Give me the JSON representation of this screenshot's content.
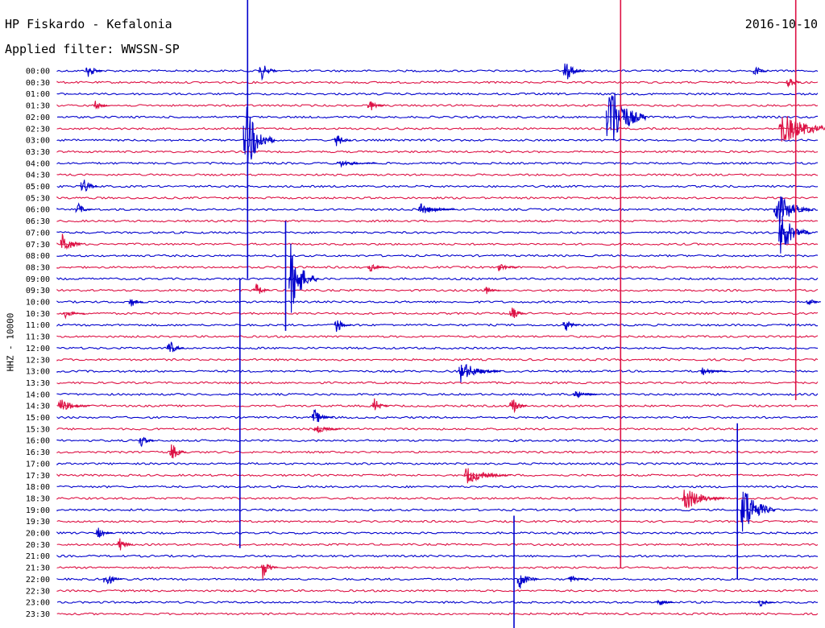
{
  "header": {
    "station": "HP Fiskardo - Kefalonia",
    "filter": "Applied filter: WWSSN-SP",
    "date": "2016-10-10"
  },
  "chart_data": {
    "type": "line",
    "title": "HP Fiskardo - Kefalonia",
    "subtitle": "Applied filter: WWSSN-SP",
    "date": "2016-10-10",
    "ylabel": "HHZ - 10000",
    "grid": false,
    "trace_colors": [
      "#0000cc",
      "#dd1144"
    ],
    "row_times": [
      "00:00",
      "00:30",
      "01:00",
      "01:30",
      "02:00",
      "02:30",
      "03:00",
      "03:30",
      "04:00",
      "04:30",
      "05:00",
      "05:30",
      "06:00",
      "06:30",
      "07:00",
      "07:30",
      "08:00",
      "08:30",
      "09:00",
      "09:30",
      "10:00",
      "10:30",
      "11:00",
      "11:30",
      "12:00",
      "12:30",
      "13:00",
      "13:30",
      "14:00",
      "14:30",
      "15:00",
      "15:30",
      "16:00",
      "16:30",
      "17:00",
      "17:30",
      "18:00",
      "18:30",
      "19:00",
      "19:30",
      "20:00",
      "20:30",
      "21:00",
      "21:30",
      "22:00",
      "22:30",
      "23:00",
      "23:30"
    ],
    "trace_minutes_per_row": 30,
    "events": [
      {
        "row": 0,
        "minute": 1.2,
        "amp": 10,
        "dur": 0.6
      },
      {
        "row": 0,
        "minute": 8.0,
        "amp": 14,
        "dur": 0.7
      },
      {
        "row": 0,
        "minute": 27.5,
        "amp": 8,
        "dur": 0.5
      },
      {
        "row": 0,
        "minute": 20.0,
        "amp": 16,
        "dur": 0.8
      },
      {
        "row": 1,
        "minute": 28.8,
        "amp": 14,
        "dur": 0.5
      },
      {
        "row": 3,
        "minute": 1.5,
        "amp": 6,
        "dur": 0.6
      },
      {
        "row": 3,
        "minute": 12.3,
        "amp": 10,
        "dur": 0.6
      },
      {
        "row": 4,
        "minute": 21.7,
        "amp": 60,
        "dur": 1.5
      },
      {
        "row": 5,
        "minute": 28.5,
        "amp": 22,
        "dur": 2.5
      },
      {
        "row": 6,
        "minute": 7.4,
        "amp": 50,
        "dur": 1.2
      },
      {
        "row": 6,
        "minute": 11.0,
        "amp": 10,
        "dur": 0.6
      },
      {
        "row": 8,
        "minute": 11.1,
        "amp": 5,
        "dur": 1.5
      },
      {
        "row": 10,
        "minute": 1.0,
        "amp": 14,
        "dur": 0.6
      },
      {
        "row": 12,
        "minute": 0.8,
        "amp": 10,
        "dur": 0.6
      },
      {
        "row": 12,
        "minute": 14.3,
        "amp": 8,
        "dur": 1.4
      },
      {
        "row": 12,
        "minute": 28.3,
        "amp": 26,
        "dur": 1.5
      },
      {
        "row": 14,
        "minute": 28.5,
        "amp": 30,
        "dur": 1.2
      },
      {
        "row": 15,
        "minute": 0.2,
        "amp": 16,
        "dur": 0.8
      },
      {
        "row": 17,
        "minute": 12.3,
        "amp": 6,
        "dur": 0.8
      },
      {
        "row": 17,
        "minute": 17.4,
        "amp": 6,
        "dur": 0.8
      },
      {
        "row": 18,
        "minute": 9.2,
        "amp": 46,
        "dur": 1.1
      },
      {
        "row": 19,
        "minute": 7.8,
        "amp": 12,
        "dur": 0.6
      },
      {
        "row": 19,
        "minute": 16.9,
        "amp": 6,
        "dur": 0.6
      },
      {
        "row": 20,
        "minute": 2.9,
        "amp": 8,
        "dur": 0.5
      },
      {
        "row": 20,
        "minute": 29.6,
        "amp": 6,
        "dur": 0.5
      },
      {
        "row": 21,
        "minute": 0.3,
        "amp": 6,
        "dur": 0.8
      },
      {
        "row": 21,
        "minute": 17.9,
        "amp": 10,
        "dur": 0.6
      },
      {
        "row": 22,
        "minute": 11.0,
        "amp": 12,
        "dur": 0.6
      },
      {
        "row": 22,
        "minute": 20.0,
        "amp": 10,
        "dur": 0.6
      },
      {
        "row": 24,
        "minute": 4.4,
        "amp": 12,
        "dur": 0.6
      },
      {
        "row": 26,
        "minute": 15.9,
        "amp": 14,
        "dur": 1.6
      },
      {
        "row": 26,
        "minute": 25.4,
        "amp": 6,
        "dur": 1.0
      },
      {
        "row": 28,
        "minute": 20.4,
        "amp": 6,
        "dur": 1.0
      },
      {
        "row": 29,
        "minute": 0.1,
        "amp": 10,
        "dur": 1.2
      },
      {
        "row": 29,
        "minute": 12.5,
        "amp": 10,
        "dur": 0.6
      },
      {
        "row": 29,
        "minute": 17.9,
        "amp": 14,
        "dur": 0.6
      },
      {
        "row": 30,
        "minute": 10.1,
        "amp": 12,
        "dur": 0.8
      },
      {
        "row": 31,
        "minute": 10.2,
        "amp": 8,
        "dur": 1.0
      },
      {
        "row": 32,
        "minute": 3.3,
        "amp": 10,
        "dur": 0.5
      },
      {
        "row": 33,
        "minute": 4.5,
        "amp": 14,
        "dur": 0.6
      },
      {
        "row": 35,
        "minute": 16.1,
        "amp": 12,
        "dur": 1.8
      },
      {
        "row": 37,
        "minute": 24.7,
        "amp": 18,
        "dur": 1.6
      },
      {
        "row": 38,
        "minute": 27.0,
        "amp": 40,
        "dur": 1.3
      },
      {
        "row": 40,
        "minute": 1.6,
        "amp": 8,
        "dur": 0.6
      },
      {
        "row": 41,
        "minute": 2.4,
        "amp": 12,
        "dur": 0.6
      },
      {
        "row": 43,
        "minute": 8.1,
        "amp": 16,
        "dur": 0.6
      },
      {
        "row": 44,
        "minute": 1.9,
        "amp": 12,
        "dur": 0.7
      },
      {
        "row": 44,
        "minute": 18.2,
        "amp": 14,
        "dur": 0.8
      },
      {
        "row": 44,
        "minute": 20.2,
        "amp": 6,
        "dur": 0.7
      },
      {
        "row": 46,
        "minute": 23.7,
        "amp": 6,
        "dur": 0.6
      },
      {
        "row": 46,
        "minute": 27.7,
        "amp": 6,
        "dur": 0.6
      }
    ],
    "long_spikes": [
      {
        "row": 0,
        "minute": 7.5,
        "top_row": -6.2,
        "bottom_row": 18.0,
        "color": "#0000cc"
      },
      {
        "row": 6,
        "minute": 7.2,
        "top_row": 18.0,
        "bottom_row": 41.3,
        "color": "#0000cc"
      },
      {
        "row": 4,
        "minute": 22.2,
        "top_row": -6.2,
        "bottom_row": 43.0,
        "color": "#dd1144"
      },
      {
        "row": 2,
        "minute": 29.1,
        "top_row": -6.2,
        "bottom_row": 28.5,
        "color": "#dd1144"
      },
      {
        "row": 19,
        "minute": 9.0,
        "top_row": 13.0,
        "bottom_row": 22.5,
        "color": "#0000cc"
      },
      {
        "row": 38,
        "minute": 18.0,
        "top_row": 38.5,
        "bottom_row": 48.5,
        "color": "#0000cc"
      },
      {
        "row": 38,
        "minute": 26.8,
        "top_row": 30.5,
        "bottom_row": 44.0,
        "color": "#0000cc"
      }
    ]
  }
}
